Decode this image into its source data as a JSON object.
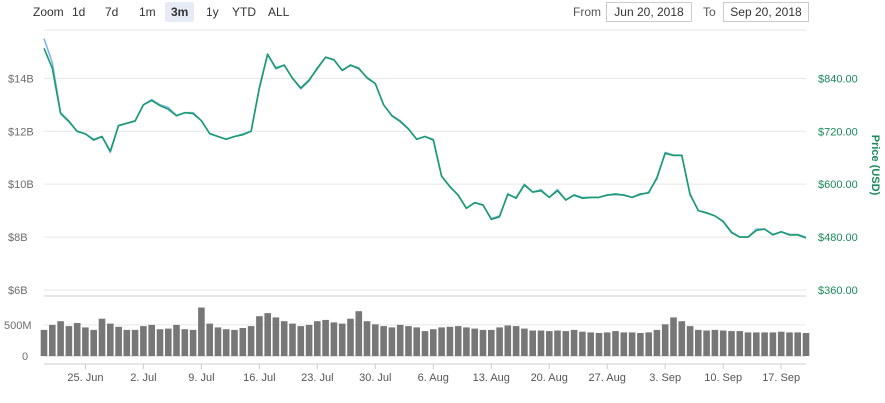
{
  "toolbar": {
    "zoom_label": "Zoom",
    "zoom_options": [
      "1d",
      "7d",
      "1m",
      "3m",
      "1y",
      "YTD",
      "ALL"
    ],
    "active_zoom": "3m",
    "from_label": "From",
    "from_value": "Jun 20, 2018",
    "to_label": "To",
    "to_value": "Sep 20, 2018"
  },
  "colors": {
    "market_cap": "#7cb5ec",
    "price_usd": "#1a9b6c",
    "price_btc": "#f0a30a",
    "volume": "#777777",
    "grid": "#e6e6e6"
  },
  "chart_data": [
    {
      "type": "line",
      "ylabel_right": "Price (USD)",
      "x_ticks": [
        "25. Jun",
        "2. Jul",
        "9. Jul",
        "16. Jul",
        "23. Jul",
        "30. Jul",
        "6. Aug",
        "13. Aug",
        "20. Aug",
        "27. Aug",
        "3. Sep",
        "10. Sep",
        "17. Sep"
      ],
      "y_left_ticks": [
        "$6B",
        "$8B",
        "$10B",
        "$12B",
        "$14B"
      ],
      "y_right_ticks": [
        "$360.00",
        "$480.00",
        "$600.00",
        "$720.00",
        "$840.00"
      ],
      "ylim_left": [
        6,
        15.6
      ],
      "ylim_right": [
        360,
        936
      ],
      "grid": true,
      "x": [
        "Jun 20",
        "Jun 21",
        "Jun 22",
        "Jun 23",
        "Jun 24",
        "Jun 25",
        "Jun 26",
        "Jun 27",
        "Jun 28",
        "Jun 29",
        "Jun 30",
        "Jul 1",
        "Jul 2",
        "Jul 3",
        "Jul 4",
        "Jul 5",
        "Jul 6",
        "Jul 7",
        "Jul 8",
        "Jul 9",
        "Jul 10",
        "Jul 11",
        "Jul 12",
        "Jul 13",
        "Jul 14",
        "Jul 15",
        "Jul 16",
        "Jul 17",
        "Jul 18",
        "Jul 19",
        "Jul 20",
        "Jul 21",
        "Jul 22",
        "Jul 23",
        "Jul 24",
        "Jul 25",
        "Jul 26",
        "Jul 27",
        "Jul 28",
        "Jul 29",
        "Jul 30",
        "Jul 31",
        "Aug 1",
        "Aug 2",
        "Aug 3",
        "Aug 4",
        "Aug 5",
        "Aug 6",
        "Aug 7",
        "Aug 8",
        "Aug 9",
        "Aug 10",
        "Aug 11",
        "Aug 12",
        "Aug 13",
        "Aug 14",
        "Aug 15",
        "Aug 16",
        "Aug 17",
        "Aug 18",
        "Aug 19",
        "Aug 20",
        "Aug 21",
        "Aug 22",
        "Aug 23",
        "Aug 24",
        "Aug 25",
        "Aug 26",
        "Aug 27",
        "Aug 28",
        "Aug 29",
        "Aug 30",
        "Aug 31",
        "Sep 1",
        "Sep 2",
        "Sep 3",
        "Sep 4",
        "Sep 5",
        "Sep 6",
        "Sep 7",
        "Sep 8",
        "Sep 9",
        "Sep 10",
        "Sep 11",
        "Sep 12",
        "Sep 13",
        "Sep 14",
        "Sep 15",
        "Sep 16",
        "Sep 17",
        "Sep 18",
        "Sep 19",
        "Sep 20"
      ],
      "series": [
        {
          "axis": "left",
          "values": [
            15.5,
            14.6,
            12.7,
            12.4,
            12.0,
            11.9,
            11.7,
            11.8,
            11.2,
            12.2,
            12.3,
            12.4,
            13.0,
            13.2,
            13.0,
            12.9,
            12.6,
            12.7,
            12.7,
            12.4,
            11.9,
            11.8,
            11.7,
            11.8,
            11.9,
            12.0,
            13.6,
            14.9,
            14.4,
            14.5,
            14.0,
            13.6,
            13.9,
            14.4,
            14.8,
            14.7,
            14.3,
            14.5,
            14.4,
            14.0,
            13.8,
            13.0,
            12.6,
            12.4,
            12.1,
            11.7,
            11.8,
            11.7,
            10.3,
            9.9,
            9.6,
            9.1,
            9.3,
            9.2,
            8.7,
            8.8,
            9.6,
            9.5,
            10.0,
            9.7,
            9.8,
            9.5,
            9.8,
            9.4,
            9.6,
            9.5,
            9.5,
            9.5,
            9.6,
            9.6,
            9.6,
            9.5,
            9.6,
            9.7,
            10.2,
            11.2,
            11.1,
            11.1,
            9.6,
            9.0,
            8.9,
            8.8,
            8.6,
            8.2,
            8.0,
            8.0,
            8.3,
            8.3,
            8.1,
            8.2,
            8.1,
            8.1,
            8.0
          ]
        },
        {
          "axis": "right",
          "values": [
            908,
            863,
            760,
            742,
            720,
            714,
            700,
            708,
            675,
            733,
            738,
            743,
            780,
            790,
            778,
            770,
            755,
            762,
            760,
            744,
            715,
            708,
            702,
            708,
            712,
            720,
            818,
            895,
            862,
            870,
            840,
            818,
            836,
            862,
            888,
            882,
            858,
            870,
            862,
            842,
            828,
            780,
            755,
            742,
            725,
            702,
            708,
            700,
            618,
            595,
            575,
            545,
            558,
            553,
            520,
            526,
            578,
            568,
            598,
            582,
            585,
            570,
            585,
            564,
            575,
            568,
            570,
            570,
            575,
            578,
            575,
            570,
            578,
            580,
            615,
            670,
            665,
            665,
            578,
            540,
            535,
            528,
            515,
            490,
            480,
            480,
            495,
            498,
            485,
            492,
            485,
            485,
            478
          ]
        }
      ]
    },
    {
      "type": "bar",
      "y_ticks": [
        "0",
        "500M"
      ],
      "ylim": [
        0,
        900000000
      ],
      "values_millions": [
        420,
        500,
        560,
        480,
        530,
        460,
        420,
        600,
        520,
        470,
        420,
        420,
        480,
        500,
        430,
        440,
        500,
        430,
        420,
        780,
        520,
        460,
        430,
        420,
        450,
        480,
        640,
        690,
        620,
        560,
        520,
        480,
        500,
        560,
        580,
        540,
        520,
        600,
        720,
        560,
        510,
        480,
        460,
        500,
        480,
        460,
        400,
        430,
        460,
        470,
        480,
        460,
        440,
        420,
        420,
        460,
        490,
        480,
        440,
        410,
        410,
        400,
        410,
        400,
        420,
        390,
        380,
        370,
        380,
        400,
        380,
        380,
        370,
        380,
        420,
        510,
        620,
        560,
        480,
        420,
        410,
        420,
        410,
        400,
        400,
        380,
        380,
        380,
        380,
        390,
        380,
        380,
        370
      ]
    }
  ]
}
